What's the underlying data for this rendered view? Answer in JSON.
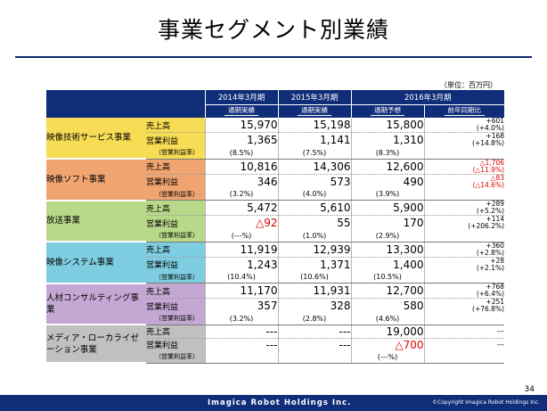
{
  "title": "事業セグメント別業績",
  "unit": "（単位：百万円）",
  "headers": {
    "years": [
      "2014年3月期",
      "2015年3月期",
      "2016年3月期"
    ],
    "subs": [
      "通期実績",
      "通期実績",
      "通期予想",
      "前年同期比"
    ]
  },
  "segments": [
    {
      "name": "映像技術サービス事業",
      "color": "#f7dc55",
      "rows": [
        {
          "label": "売上高",
          "values": [
            "15,970",
            "15,198",
            "15,800"
          ],
          "change": [
            "+601",
            "(+4.0%)"
          ],
          "neg": [
            false,
            false,
            false
          ],
          "change_neg": false
        },
        {
          "label": "営業利益",
          "values": [
            "1,365",
            "1,141",
            "1,310"
          ],
          "change": [
            "+168",
            "(+14.8%)"
          ],
          "neg": [
            false,
            false,
            false
          ],
          "change_neg": false
        },
        {
          "label": "（営業利益率）",
          "values": [
            "(8.5%)",
            "(7.5%)",
            "(8.3%)"
          ],
          "change": [],
          "neg": [
            false,
            false,
            false
          ],
          "change_neg": false
        }
      ]
    },
    {
      "name": "映像ソフト事業",
      "color": "#f0a470",
      "rows": [
        {
          "label": "売上高",
          "values": [
            "10,816",
            "14,306",
            "12,600"
          ],
          "change": [
            "△1,706",
            "(△11.9%)"
          ],
          "neg": [
            false,
            false,
            false
          ],
          "change_neg": true
        },
        {
          "label": "営業利益",
          "values": [
            "346",
            "573",
            "490"
          ],
          "change": [
            "△83",
            "(△14.6%)"
          ],
          "neg": [
            false,
            false,
            false
          ],
          "change_neg": true
        },
        {
          "label": "（営業利益率）",
          "values": [
            "(3.2%)",
            "(4.0%)",
            "(3.9%)"
          ],
          "change": [],
          "neg": [
            false,
            false,
            false
          ],
          "change_neg": false
        }
      ]
    },
    {
      "name": "放送事業",
      "color": "#b9d98a",
      "rows": [
        {
          "label": "売上高",
          "values": [
            "5,472",
            "5,610",
            "5,900"
          ],
          "change": [
            "+289",
            "(+5.2%)"
          ],
          "neg": [
            false,
            false,
            false
          ],
          "change_neg": false
        },
        {
          "label": "営業利益",
          "values": [
            "△92",
            "55",
            "170"
          ],
          "change": [
            "+114",
            "(+206.2%)"
          ],
          "neg": [
            true,
            false,
            false
          ],
          "change_neg": false
        },
        {
          "label": "（営業利益率）",
          "values": [
            "(---%)",
            "(1.0%)",
            "(2.9%)"
          ],
          "change": [],
          "neg": [
            false,
            false,
            false
          ],
          "change_neg": false
        }
      ]
    },
    {
      "name": "映像システム事業",
      "color": "#7fcde0",
      "rows": [
        {
          "label": "売上高",
          "values": [
            "11,919",
            "12,939",
            "13,300"
          ],
          "change": [
            "+360",
            "(+2.8%)"
          ],
          "neg": [
            false,
            false,
            false
          ],
          "change_neg": false
        },
        {
          "label": "営業利益",
          "values": [
            "1,243",
            "1,371",
            "1,400"
          ],
          "change": [
            "+28",
            "(+2.1%)"
          ],
          "neg": [
            false,
            false,
            false
          ],
          "change_neg": false
        },
        {
          "label": "（営業利益率）",
          "values": [
            "(10.4%)",
            "(10.6%)",
            "(10.5%)"
          ],
          "change": [],
          "neg": [
            false,
            false,
            false
          ],
          "change_neg": false
        }
      ]
    },
    {
      "name": "人材コンサルティング事業",
      "color": "#c4a8d3",
      "rows": [
        {
          "label": "売上高",
          "values": [
            "11,170",
            "11,931",
            "12,700"
          ],
          "change": [
            "+768",
            "(+6.4%)"
          ],
          "neg": [
            false,
            false,
            false
          ],
          "change_neg": false
        },
        {
          "label": "営業利益",
          "values": [
            "357",
            "328",
            "580"
          ],
          "change": [
            "+251",
            "(+76.8%)"
          ],
          "neg": [
            false,
            false,
            false
          ],
          "change_neg": false
        },
        {
          "label": "（営業利益率）",
          "values": [
            "(3.2%)",
            "(2.8%)",
            "(4.6%)"
          ],
          "change": [],
          "neg": [
            false,
            false,
            false
          ],
          "change_neg": false
        }
      ]
    },
    {
      "name": "メディア・ローカライゼーション事業",
      "color": "#c0c0c0",
      "rows": [
        {
          "label": "売上高",
          "values": [
            "---",
            "---",
            "19,000"
          ],
          "change": [
            "---"
          ],
          "neg": [
            false,
            false,
            false
          ],
          "change_neg": false
        },
        {
          "label": "営業利益",
          "values": [
            "---",
            "---",
            "△700"
          ],
          "change": [
            "---"
          ],
          "neg": [
            false,
            false,
            true
          ],
          "change_neg": false
        },
        {
          "label": "（営業利益率）",
          "values": [
            "",
            "",
            "(---%)"
          ],
          "change": [],
          "neg": [
            false,
            false,
            false
          ],
          "change_neg": false
        }
      ]
    }
  ],
  "footer": {
    "logo": "Imagica Robot Holdings Inc.",
    "copyright": "©Copyright Imagica Robot Holdings Inc.",
    "page": "34"
  }
}
